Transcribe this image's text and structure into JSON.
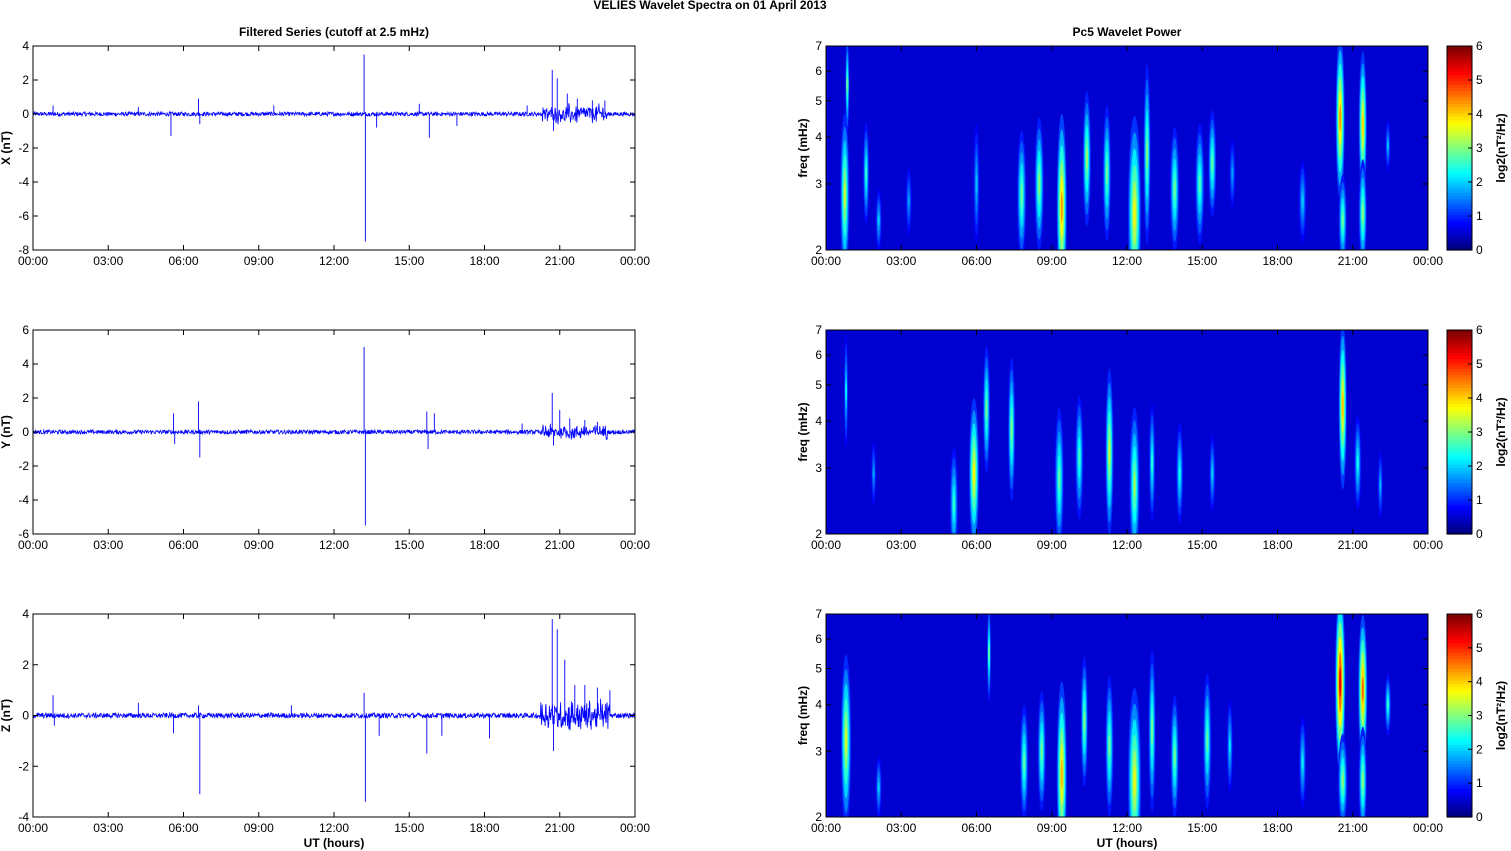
{
  "figure_title": "VELIES Wavelet Spectra on 01 April     2013",
  "chart_data": [
    {
      "type": "line",
      "title": "Filtered Series (cutoff at 2.5 mHz)",
      "ylabel": "X (nT)",
      "xlabel": "",
      "x_tick_labels": [
        "00:00",
        "03:00",
        "06:00",
        "09:00",
        "12:00",
        "15:00",
        "18:00",
        "21:00",
        "00:00"
      ],
      "xlim_hours": [
        0,
        24
      ],
      "ylim": [
        -8,
        4
      ],
      "yticks": [
        -8,
        -6,
        -4,
        -2,
        0,
        2,
        4
      ],
      "color": "#0000ff",
      "baseline_amplitude": 0.12,
      "spikes": [
        {
          "t": 0.8,
          "v": 0.5
        },
        {
          "t": 4.2,
          "v": 0.4
        },
        {
          "t": 5.5,
          "v": -1.3
        },
        {
          "t": 6.6,
          "v": 0.9
        },
        {
          "t": 6.65,
          "v": -0.6
        },
        {
          "t": 9.6,
          "v": 0.5
        },
        {
          "t": 13.2,
          "v": 3.5
        },
        {
          "t": 13.25,
          "v": -7.5
        },
        {
          "t": 13.7,
          "v": -0.8
        },
        {
          "t": 15.4,
          "v": 0.6
        },
        {
          "t": 15.8,
          "v": -1.4
        },
        {
          "t": 16.9,
          "v": -0.7
        },
        {
          "t": 19.7,
          "v": 0.5
        },
        {
          "t": 20.7,
          "v": 2.6
        },
        {
          "t": 20.75,
          "v": -1.0
        },
        {
          "t": 20.9,
          "v": 2.1
        },
        {
          "t": 21.3,
          "v": 1.2
        },
        {
          "t": 21.7,
          "v": 0.9
        },
        {
          "t": 22.3,
          "v": 0.8
        },
        {
          "t": 22.8,
          "v": 0.8
        }
      ],
      "burst": {
        "t0": 20.3,
        "t1": 22.9,
        "amplitude": 0.45
      }
    },
    {
      "type": "line",
      "title": "",
      "ylabel": "Y (nT)",
      "xlabel": "",
      "x_tick_labels": [
        "00:00",
        "03:00",
        "06:00",
        "09:00",
        "12:00",
        "15:00",
        "18:00",
        "21:00",
        "00:00"
      ],
      "xlim_hours": [
        0,
        24
      ],
      "ylim": [
        -6,
        6
      ],
      "yticks": [
        -6,
        -4,
        -2,
        0,
        2,
        4,
        6
      ],
      "color": "#0000ff",
      "baseline_amplitude": 0.12,
      "spikes": [
        {
          "t": 5.6,
          "v": 1.1
        },
        {
          "t": 5.65,
          "v": -0.7
        },
        {
          "t": 6.6,
          "v": 1.8
        },
        {
          "t": 6.65,
          "v": -1.5
        },
        {
          "t": 13.2,
          "v": 5.0
        },
        {
          "t": 13.25,
          "v": -5.5
        },
        {
          "t": 15.7,
          "v": 1.2
        },
        {
          "t": 15.75,
          "v": -1.0
        },
        {
          "t": 16.0,
          "v": 1.1
        },
        {
          "t": 19.5,
          "v": 0.5
        },
        {
          "t": 20.7,
          "v": 2.3
        },
        {
          "t": 20.75,
          "v": -0.8
        },
        {
          "t": 21.0,
          "v": 1.3
        },
        {
          "t": 21.4,
          "v": 0.8
        },
        {
          "t": 22.0,
          "v": 0.7
        },
        {
          "t": 22.5,
          "v": 0.6
        }
      ],
      "burst": {
        "t0": 20.3,
        "t1": 22.9,
        "amplitude": 0.35
      }
    },
    {
      "type": "line",
      "title": "",
      "ylabel": "Z (nT)",
      "xlabel": "UT (hours)",
      "x_tick_labels": [
        "00:00",
        "03:00",
        "06:00",
        "09:00",
        "12:00",
        "15:00",
        "18:00",
        "21:00",
        "00:00"
      ],
      "xlim_hours": [
        0,
        24
      ],
      "ylim": [
        -4,
        4
      ],
      "yticks": [
        -4,
        -2,
        0,
        2,
        4
      ],
      "color": "#0000ff",
      "baseline_amplitude": 0.1,
      "spikes": [
        {
          "t": 0.8,
          "v": 0.8
        },
        {
          "t": 0.85,
          "v": -0.4
        },
        {
          "t": 4.2,
          "v": 0.5
        },
        {
          "t": 5.6,
          "v": -0.7
        },
        {
          "t": 6.6,
          "v": 0.4
        },
        {
          "t": 6.65,
          "v": -3.1
        },
        {
          "t": 10.3,
          "v": 0.4
        },
        {
          "t": 13.2,
          "v": 0.9
        },
        {
          "t": 13.25,
          "v": -3.4
        },
        {
          "t": 13.8,
          "v": -0.8
        },
        {
          "t": 15.7,
          "v": -1.5
        },
        {
          "t": 16.3,
          "v": -0.8
        },
        {
          "t": 18.2,
          "v": -0.9
        },
        {
          "t": 20.7,
          "v": 3.8
        },
        {
          "t": 20.75,
          "v": -1.4
        },
        {
          "t": 20.9,
          "v": 3.4
        },
        {
          "t": 21.2,
          "v": 2.2
        },
        {
          "t": 21.6,
          "v": 1.2
        },
        {
          "t": 22.0,
          "v": 1.2
        },
        {
          "t": 22.5,
          "v": 1.1
        },
        {
          "t": 23.0,
          "v": 1.0
        }
      ],
      "burst": {
        "t0": 20.2,
        "t1": 23.0,
        "amplitude": 0.5
      }
    },
    {
      "type": "heatmap",
      "title": "Pc5 Wavelet Power",
      "ylabel": "freq (mHz)",
      "xlabel": "",
      "x_tick_labels": [
        "00:00",
        "03:00",
        "06:00",
        "09:00",
        "12:00",
        "15:00",
        "18:00",
        "21:00",
        "00:00"
      ],
      "xlim_hours": [
        0,
        24
      ],
      "ylim": [
        2,
        7
      ],
      "yscale": "log",
      "yticks": [
        2,
        3,
        4,
        5,
        6,
        7
      ],
      "colorbar_label": "log2(nT²/Hz)",
      "colorbar_ticks": [
        0,
        1,
        2,
        3,
        4,
        5,
        6
      ],
      "clim": [
        0,
        6
      ],
      "colormap": "jet",
      "features": [
        {
          "t": 0.75,
          "f": 2.8,
          "width": 0.18,
          "height": 2.5,
          "power": 3.2
        },
        {
          "t": 0.85,
          "f": 5.5,
          "width": 0.08,
          "height": 3.0,
          "power": 2.5
        },
        {
          "t": 1.6,
          "f": 3.2,
          "width": 0.12,
          "height": 1.8,
          "power": 2.2
        },
        {
          "t": 2.1,
          "f": 2.4,
          "width": 0.12,
          "height": 0.8,
          "power": 1.6
        },
        {
          "t": 3.3,
          "f": 2.7,
          "width": 0.12,
          "height": 1.0,
          "power": 1.3
        },
        {
          "t": 6.0,
          "f": 3.0,
          "width": 0.12,
          "height": 2.0,
          "power": 1.5
        },
        {
          "t": 7.8,
          "f": 2.8,
          "width": 0.18,
          "height": 2.0,
          "power": 2.6
        },
        {
          "t": 8.5,
          "f": 3.0,
          "width": 0.18,
          "height": 2.2,
          "power": 2.8
        },
        {
          "t": 9.4,
          "f": 2.6,
          "width": 0.2,
          "height": 2.6,
          "power": 4.2
        },
        {
          "t": 10.4,
          "f": 3.5,
          "width": 0.16,
          "height": 2.6,
          "power": 2.9
        },
        {
          "t": 11.2,
          "f": 3.2,
          "width": 0.16,
          "height": 2.4,
          "power": 2.6
        },
        {
          "t": 12.3,
          "f": 2.5,
          "width": 0.26,
          "height": 2.6,
          "power": 3.6
        },
        {
          "t": 12.8,
          "f": 3.6,
          "width": 0.14,
          "height": 3.5,
          "power": 2.7
        },
        {
          "t": 13.9,
          "f": 2.9,
          "width": 0.18,
          "height": 2.0,
          "power": 2.6
        },
        {
          "t": 14.9,
          "f": 3.0,
          "width": 0.18,
          "height": 2.0,
          "power": 2.4
        },
        {
          "t": 15.4,
          "f": 3.4,
          "width": 0.16,
          "height": 2.0,
          "power": 2.5
        },
        {
          "t": 16.2,
          "f": 3.2,
          "width": 0.12,
          "height": 1.2,
          "power": 1.3
        },
        {
          "t": 19.0,
          "f": 2.7,
          "width": 0.15,
          "height": 1.2,
          "power": 1.6
        },
        {
          "t": 20.5,
          "f": 4.5,
          "width": 0.18,
          "height": 4.0,
          "power": 4.2
        },
        {
          "t": 20.6,
          "f": 2.4,
          "width": 0.16,
          "height": 1.2,
          "power": 2.6
        },
        {
          "t": 21.4,
          "f": 4.3,
          "width": 0.16,
          "height": 3.5,
          "power": 3.8
        },
        {
          "t": 21.4,
          "f": 2.5,
          "width": 0.16,
          "height": 1.5,
          "power": 2.8
        },
        {
          "t": 22.4,
          "f": 3.8,
          "width": 0.1,
          "height": 1.0,
          "power": 1.5
        }
      ]
    },
    {
      "type": "heatmap",
      "title": "",
      "ylabel": "freq (mHz)",
      "xlabel": "",
      "x_tick_labels": [
        "00:00",
        "03:00",
        "06:00",
        "09:00",
        "12:00",
        "15:00",
        "18:00",
        "21:00",
        "00:00"
      ],
      "xlim_hours": [
        0,
        24
      ],
      "ylim": [
        2,
        7
      ],
      "yscale": "log",
      "yticks": [
        2,
        3,
        4,
        5,
        6,
        7
      ],
      "colorbar_label": "log2(nT²/Hz)",
      "colorbar_ticks": [
        0,
        1,
        2,
        3,
        4,
        5,
        6
      ],
      "clim": [
        0,
        6
      ],
      "colormap": "jet",
      "features": [
        {
          "t": 0.8,
          "f": 4.8,
          "width": 0.08,
          "height": 3.0,
          "power": 1.8
        },
        {
          "t": 1.9,
          "f": 2.9,
          "width": 0.1,
          "height": 1.0,
          "power": 1.3
        },
        {
          "t": 5.1,
          "f": 2.4,
          "width": 0.16,
          "height": 1.5,
          "power": 2.2
        },
        {
          "t": 5.9,
          "f": 2.9,
          "width": 0.2,
          "height": 2.4,
          "power": 3.6
        },
        {
          "t": 6.4,
          "f": 4.3,
          "width": 0.14,
          "height": 3.0,
          "power": 2.6
        },
        {
          "t": 7.4,
          "f": 3.8,
          "width": 0.14,
          "height": 3.0,
          "power": 2.7
        },
        {
          "t": 9.3,
          "f": 2.8,
          "width": 0.18,
          "height": 2.2,
          "power": 2.5
        },
        {
          "t": 10.1,
          "f": 3.2,
          "width": 0.16,
          "height": 2.2,
          "power": 2.3
        },
        {
          "t": 11.3,
          "f": 3.3,
          "width": 0.16,
          "height": 3.0,
          "power": 3.2
        },
        {
          "t": 12.3,
          "f": 2.7,
          "width": 0.2,
          "height": 2.3,
          "power": 2.9
        },
        {
          "t": 13.0,
          "f": 3.1,
          "width": 0.12,
          "height": 2.0,
          "power": 2.1
        },
        {
          "t": 14.1,
          "f": 2.9,
          "width": 0.14,
          "height": 1.6,
          "power": 2.0
        },
        {
          "t": 15.4,
          "f": 2.9,
          "width": 0.12,
          "height": 1.2,
          "power": 1.6
        },
        {
          "t": 20.6,
          "f": 4.4,
          "width": 0.16,
          "height": 4.0,
          "power": 3.9
        },
        {
          "t": 21.2,
          "f": 3.1,
          "width": 0.14,
          "height": 1.6,
          "power": 2.0
        },
        {
          "t": 22.1,
          "f": 2.7,
          "width": 0.1,
          "height": 1.0,
          "power": 1.4
        }
      ]
    },
    {
      "type": "heatmap",
      "title": "",
      "ylabel": "freq (mHz)",
      "xlabel": "UT (hours)",
      "x_tick_labels": [
        "00:00",
        "03:00",
        "06:00",
        "09:00",
        "12:00",
        "15:00",
        "18:00",
        "21:00",
        "00:00"
      ],
      "xlim_hours": [
        0,
        24
      ],
      "ylim": [
        2,
        7
      ],
      "yscale": "log",
      "yticks": [
        2,
        3,
        4,
        5,
        6,
        7
      ],
      "colorbar_label": "log2(nT²/Hz)",
      "colorbar_ticks": [
        0,
        1,
        2,
        3,
        4,
        5,
        6
      ],
      "clim": [
        0,
        6
      ],
      "colormap": "jet",
      "features": [
        {
          "t": 0.8,
          "f": 3.2,
          "width": 0.2,
          "height": 3.0,
          "power": 3.3
        },
        {
          "t": 2.1,
          "f": 2.4,
          "width": 0.12,
          "height": 0.8,
          "power": 1.6
        },
        {
          "t": 6.5,
          "f": 5.5,
          "width": 0.08,
          "height": 3.0,
          "power": 2.4
        },
        {
          "t": 7.9,
          "f": 2.8,
          "width": 0.16,
          "height": 1.8,
          "power": 2.5
        },
        {
          "t": 8.6,
          "f": 3.0,
          "width": 0.16,
          "height": 2.0,
          "power": 2.6
        },
        {
          "t": 9.4,
          "f": 2.6,
          "width": 0.2,
          "height": 2.6,
          "power": 4.0
        },
        {
          "t": 10.3,
          "f": 3.6,
          "width": 0.14,
          "height": 2.6,
          "power": 2.7
        },
        {
          "t": 11.3,
          "f": 3.1,
          "width": 0.16,
          "height": 2.4,
          "power": 2.6
        },
        {
          "t": 12.3,
          "f": 2.5,
          "width": 0.26,
          "height": 2.5,
          "power": 3.5
        },
        {
          "t": 13.0,
          "f": 3.4,
          "width": 0.14,
          "height": 3.0,
          "power": 2.6
        },
        {
          "t": 13.9,
          "f": 2.9,
          "width": 0.16,
          "height": 2.0,
          "power": 2.6
        },
        {
          "t": 15.2,
          "f": 3.2,
          "width": 0.16,
          "height": 2.4,
          "power": 2.5
        },
        {
          "t": 16.1,
          "f": 3.1,
          "width": 0.12,
          "height": 1.6,
          "power": 1.7
        },
        {
          "t": 19.0,
          "f": 2.8,
          "width": 0.14,
          "height": 1.4,
          "power": 1.8
        },
        {
          "t": 20.5,
          "f": 4.6,
          "width": 0.2,
          "height": 4.5,
          "power": 5.3
        },
        {
          "t": 20.6,
          "f": 2.5,
          "width": 0.18,
          "height": 1.3,
          "power": 2.8
        },
        {
          "t": 21.4,
          "f": 4.4,
          "width": 0.18,
          "height": 3.6,
          "power": 4.5
        },
        {
          "t": 21.4,
          "f": 2.5,
          "width": 0.16,
          "height": 1.5,
          "power": 2.8
        },
        {
          "t": 22.4,
          "f": 4.0,
          "width": 0.12,
          "height": 1.3,
          "power": 2.2
        }
      ]
    }
  ]
}
